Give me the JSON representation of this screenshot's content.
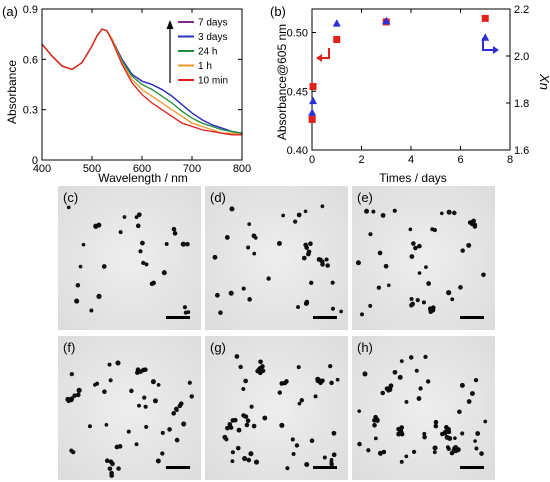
{
  "chart_data": [
    {
      "panel": "(a)",
      "type": "line",
      "xlabel": "Wavelength / nm",
      "ylabel": "Absorbance",
      "xlim": [
        400,
        800
      ],
      "ylim": [
        0,
        0.9
      ],
      "xticks": [
        "400",
        "500",
        "600",
        "700",
        "800"
      ],
      "yticks": [
        "0",
        "0.3",
        "0.6",
        "0.9"
      ],
      "grid": false,
      "legend": "top-right",
      "legend_arrow": "upward",
      "series": [
        {
          "name": "7 days",
          "color": "#7b2d8e",
          "x": [
            400,
            420,
            440,
            460,
            480,
            500,
            510,
            520,
            530,
            540,
            560,
            580,
            600,
            620,
            640,
            660,
            680,
            700,
            720,
            740,
            760,
            780,
            800
          ],
          "y": [
            0.69,
            0.62,
            0.56,
            0.54,
            0.58,
            0.68,
            0.74,
            0.78,
            0.77,
            0.72,
            0.6,
            0.51,
            0.47,
            0.45,
            0.42,
            0.38,
            0.33,
            0.28,
            0.24,
            0.21,
            0.19,
            0.17,
            0.16
          ]
        },
        {
          "name": "3 days",
          "color": "#2633c4",
          "x": [
            400,
            420,
            440,
            460,
            480,
            500,
            510,
            520,
            530,
            540,
            560,
            580,
            600,
            620,
            640,
            660,
            680,
            700,
            720,
            740,
            760,
            780,
            800
          ],
          "y": [
            0.69,
            0.62,
            0.56,
            0.54,
            0.58,
            0.68,
            0.74,
            0.78,
            0.77,
            0.72,
            0.6,
            0.51,
            0.47,
            0.45,
            0.42,
            0.38,
            0.33,
            0.28,
            0.24,
            0.21,
            0.19,
            0.17,
            0.16
          ]
        },
        {
          "name": "24 h",
          "color": "#1e8c3a",
          "x": [
            400,
            420,
            440,
            460,
            480,
            500,
            510,
            520,
            530,
            540,
            560,
            580,
            600,
            620,
            640,
            660,
            680,
            700,
            720,
            740,
            760,
            780,
            800
          ],
          "y": [
            0.69,
            0.62,
            0.56,
            0.54,
            0.58,
            0.68,
            0.74,
            0.78,
            0.77,
            0.72,
            0.59,
            0.5,
            0.45,
            0.42,
            0.38,
            0.34,
            0.29,
            0.25,
            0.22,
            0.2,
            0.18,
            0.17,
            0.16
          ]
        },
        {
          "name": "1 h",
          "color": "#f0962a",
          "x": [
            400,
            420,
            440,
            460,
            480,
            500,
            510,
            520,
            530,
            540,
            560,
            580,
            600,
            620,
            640,
            660,
            680,
            700,
            720,
            740,
            760,
            780,
            800
          ],
          "y": [
            0.69,
            0.62,
            0.56,
            0.54,
            0.58,
            0.68,
            0.74,
            0.78,
            0.77,
            0.72,
            0.58,
            0.48,
            0.42,
            0.38,
            0.34,
            0.3,
            0.26,
            0.22,
            0.2,
            0.18,
            0.16,
            0.16,
            0.15
          ]
        },
        {
          "name": "10 min",
          "color": "#e0201b",
          "x": [
            400,
            420,
            440,
            460,
            480,
            500,
            510,
            520,
            530,
            540,
            560,
            580,
            600,
            620,
            640,
            660,
            680,
            700,
            720,
            740,
            760,
            780,
            800
          ],
          "y": [
            0.69,
            0.62,
            0.56,
            0.54,
            0.58,
            0.68,
            0.74,
            0.78,
            0.77,
            0.71,
            0.57,
            0.46,
            0.39,
            0.34,
            0.3,
            0.26,
            0.22,
            0.2,
            0.18,
            0.17,
            0.16,
            0.15,
            0.15
          ]
        }
      ]
    },
    {
      "panel": "(b)",
      "type": "scatter",
      "xlabel": "Times / days",
      "ylabel": "Absorbance@605 nm",
      "y2label": "X̄n",
      "xlim": [
        0,
        8
      ],
      "ylim": [
        0.4,
        0.52
      ],
      "y2lim": [
        1.6,
        2.2
      ],
      "xticks": [
        "0",
        "2",
        "4",
        "6",
        "8"
      ],
      "yticks": [
        "0.40",
        "0.45",
        "0.50"
      ],
      "y2ticks": [
        "1.6",
        "1.8",
        "2.0",
        "2.2"
      ],
      "grid": false,
      "series": [
        {
          "name": "Absorbance@605 nm",
          "axis": "left",
          "marker": "square",
          "color": "#e0201b",
          "x": [
            0.0069,
            0.042,
            1,
            3,
            7
          ],
          "y": [
            0.426,
            0.454,
            0.494,
            0.509,
            0.512
          ]
        },
        {
          "name": "X̄n",
          "axis": "right",
          "marker": "triangle",
          "color": "#2b2fd8",
          "x": [
            0.0069,
            0.042,
            1,
            3,
            7
          ],
          "y": [
            1.76,
            1.81,
            2.14,
            2.15,
            2.08
          ]
        }
      ]
    }
  ],
  "micrographs": [
    {
      "label": "(c)"
    },
    {
      "label": "(d)"
    },
    {
      "label": "(e)"
    },
    {
      "label": "(f)"
    },
    {
      "label": "(g)"
    },
    {
      "label": "(h)"
    }
  ]
}
